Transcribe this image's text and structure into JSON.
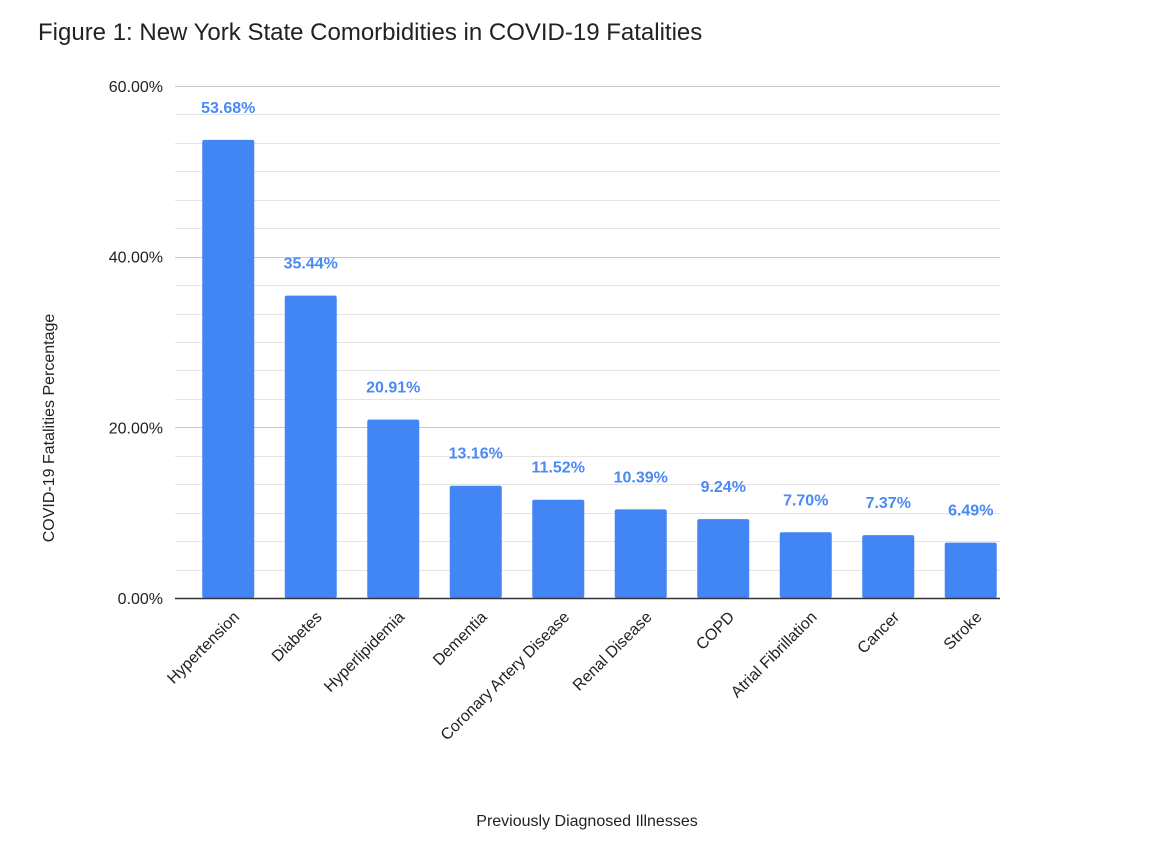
{
  "chart_data": {
    "type": "bar",
    "title": "Figure 1: New York State Comorbidities in COVID-19 Fatalities",
    "xlabel": "Previously Diagnosed Illnesses",
    "ylabel": "COVID-19 Fatalities Percentage",
    "ylim": [
      0,
      60
    ],
    "yticks": [
      0,
      20,
      40,
      60
    ],
    "ytick_labels": [
      "0.00%",
      "20.00%",
      "40.00%",
      "60.00%"
    ],
    "minor_grid_step": 3.3333,
    "grid": true,
    "categories": [
      "Hypertension",
      "Diabetes",
      "Hyperlipidemia",
      "Dementia",
      "Coronary Artery Disease",
      "Renal Disease",
      "COPD",
      "Atrial Fibrillation",
      "Cancer",
      "Stroke"
    ],
    "values": [
      53.68,
      35.44,
      20.91,
      13.16,
      11.52,
      10.39,
      9.24,
      7.7,
      7.37,
      6.49
    ],
    "data_labels": [
      "53.68%",
      "35.44%",
      "20.91%",
      "13.16%",
      "11.52%",
      "10.39%",
      "9.24%",
      "7.70%",
      "7.37%",
      "6.49%"
    ],
    "bar_color": "#4285f4",
    "label_color": "#4a8af4"
  }
}
